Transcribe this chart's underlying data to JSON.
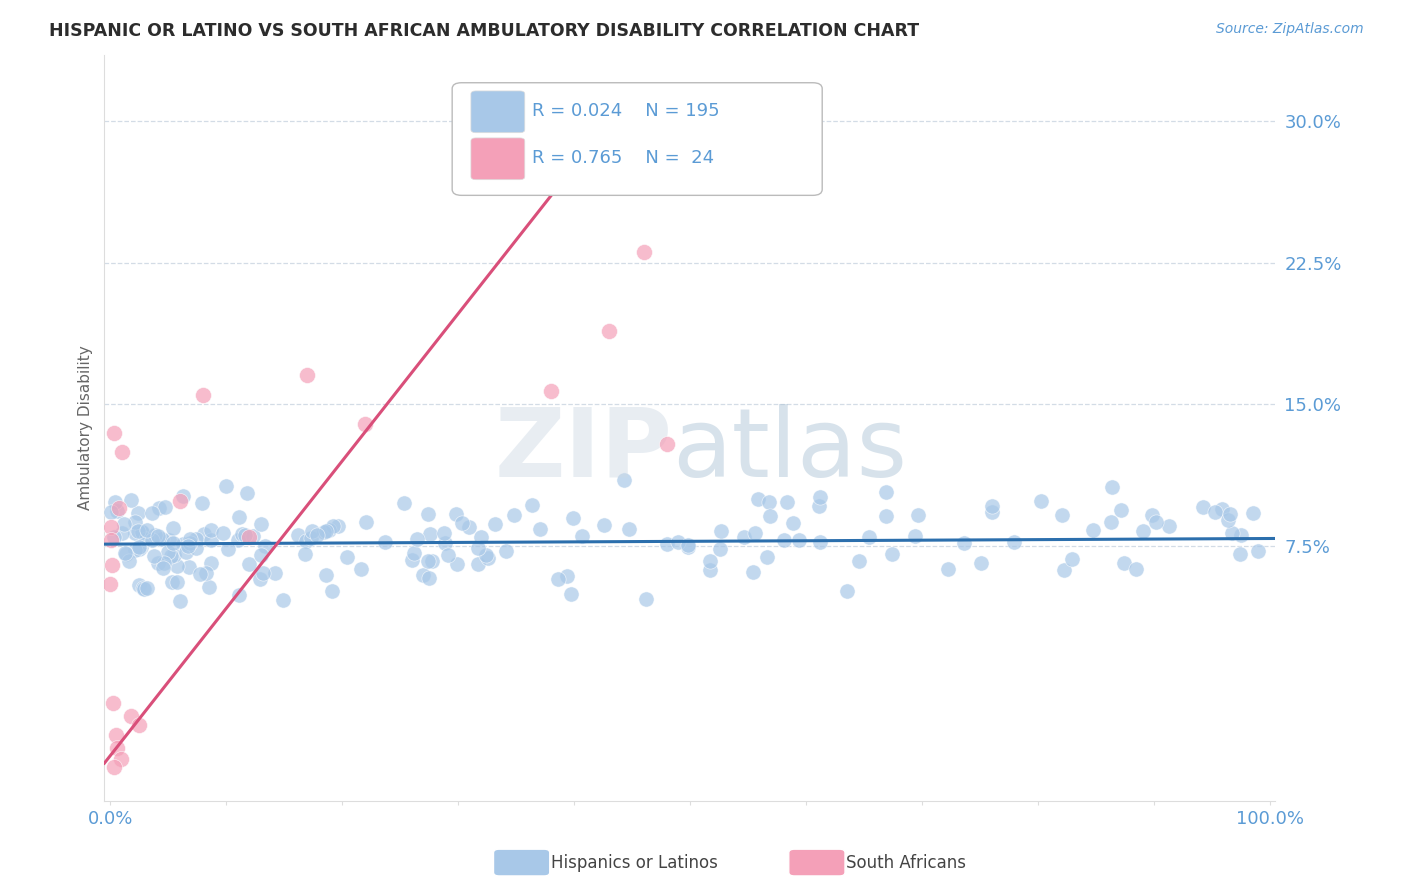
{
  "title": "HISPANIC OR LATINO VS SOUTH AFRICAN AMBULATORY DISABILITY CORRELATION CHART",
  "source": "Source: ZipAtlas.com",
  "ylabel": "Ambulatory Disability",
  "xlim": [
    -0.005,
    1.005
  ],
  "ylim": [
    -0.06,
    0.335
  ],
  "yticks": [
    0.075,
    0.15,
    0.225,
    0.3
  ],
  "ytick_labels": [
    "7.5%",
    "15.0%",
    "22.5%",
    "30.0%"
  ],
  "xticks": [
    0.0,
    0.1,
    0.2,
    0.3,
    0.4,
    0.5,
    0.6,
    0.7,
    0.8,
    0.9,
    1.0
  ],
  "blue_color": "#a8c8e8",
  "pink_color": "#f4a0b8",
  "blue_line_color": "#2c6fad",
  "pink_line_color": "#d94f7a",
  "title_color": "#2c2c2c",
  "axis_label_color": "#5b9bd5",
  "grid_color": "#c8d4e0",
  "legend_r_blue": "R = 0.024",
  "legend_n_blue": "N = 195",
  "legend_r_pink": "R = 0.765",
  "legend_n_pink": "N =  24",
  "blue_N": 195,
  "pink_N": 24,
  "scatter_alpha": 0.7,
  "scatter_size": 120,
  "pink_line_x0": -0.005,
  "pink_line_x1": 0.45,
  "pink_line_y0": -0.04,
  "pink_line_y1": 0.315,
  "blue_line_y": 0.076
}
